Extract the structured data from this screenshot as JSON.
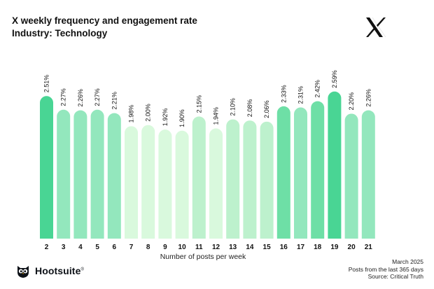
{
  "header": {
    "title": "X weekly frequency and engagement rate",
    "subtitle": "Industry: Technology"
  },
  "icons": {
    "platform": "x-logo-icon",
    "brand": "hootsuite-owl-icon"
  },
  "brand": {
    "name": "Hootsuite",
    "mark": "®"
  },
  "footer": {
    "date": "March 2025",
    "scope": "Posts from the last 365 days",
    "source": "Source: Critical Truth"
  },
  "colors": {
    "lightest": "#d9f9dd",
    "light": "#bdf1cd",
    "medium": "#93e7bd",
    "dark": "#6edfa6",
    "darkest": "#49d594",
    "text": "#111111"
  },
  "chart_data": {
    "type": "bar",
    "title": "X weekly frequency and engagement rate",
    "subtitle": "Industry: Technology",
    "xlabel": "Number of posts per week",
    "ylabel": "",
    "categories": [
      "2",
      "3",
      "4",
      "5",
      "6",
      "7",
      "8",
      "9",
      "10",
      "11",
      "12",
      "13",
      "14",
      "15",
      "16",
      "17",
      "18",
      "19",
      "20",
      "21"
    ],
    "values": [
      2.51,
      2.27,
      2.26,
      2.27,
      2.21,
      1.98,
      2.0,
      1.92,
      1.9,
      2.15,
      1.94,
      2.1,
      2.08,
      2.06,
      2.33,
      2.31,
      2.42,
      2.59,
      2.2,
      2.26
    ],
    "value_labels": [
      "2.51%",
      "2.27%",
      "2.26%",
      "2.27%",
      "2.21%",
      "1.98%",
      "2.00%",
      "1.92%",
      "1.90%",
      "2.15%",
      "1.94%",
      "2.10%",
      "2.08%",
      "2.06%",
      "2.33%",
      "2.31%",
      "2.42%",
      "2.59%",
      "2.20%",
      "2.26%"
    ],
    "ylim": [
      0,
      2.6
    ],
    "grid": false,
    "legend": "none"
  }
}
